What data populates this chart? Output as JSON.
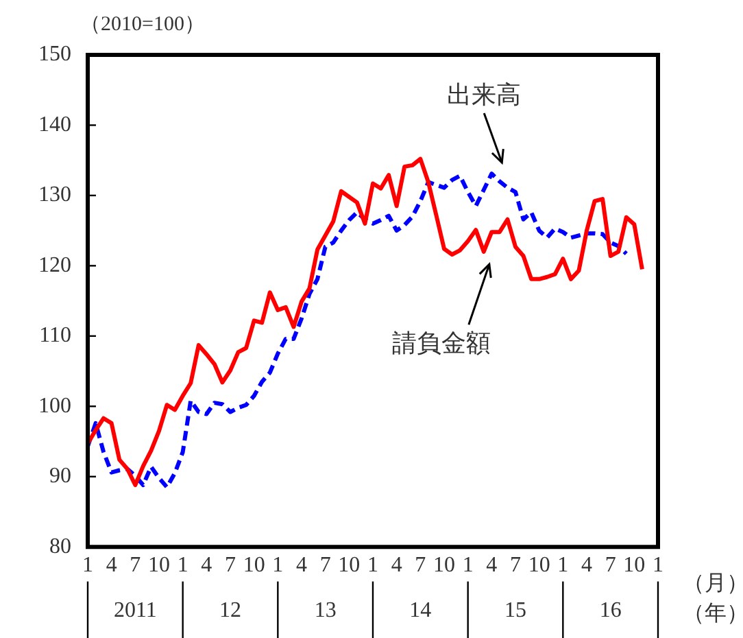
{
  "chart_data": {
    "type": "line",
    "ylabel": "（2010=100）",
    "xlabel": "（月）",
    "x2label": "（年）",
    "x": [
      "2011-01",
      "2011-02",
      "2011-03",
      "2011-04",
      "2011-05",
      "2011-06",
      "2011-07",
      "2011-08",
      "2011-09",
      "2011-10",
      "2011-11",
      "2011-12",
      "2012-01",
      "2012-02",
      "2012-03",
      "2012-04",
      "2012-05",
      "2012-06",
      "2012-07",
      "2012-08",
      "2012-09",
      "2012-10",
      "2012-11",
      "2012-12",
      "2013-01",
      "2013-02",
      "2013-03",
      "2013-04",
      "2013-05",
      "2013-06",
      "2013-07",
      "2013-08",
      "2013-09",
      "2013-10",
      "2013-11",
      "2013-12",
      "2014-01",
      "2014-02",
      "2014-03",
      "2014-04",
      "2014-05",
      "2014-06",
      "2014-07",
      "2014-08",
      "2014-09",
      "2014-10",
      "2014-11",
      "2014-12",
      "2015-01",
      "2015-02",
      "2015-03",
      "2015-04",
      "2015-05",
      "2015-06",
      "2015-07",
      "2015-08",
      "2015-09",
      "2015-10",
      "2015-11",
      "2015-12",
      "2016-01",
      "2016-02",
      "2016-03",
      "2016-04",
      "2016-05",
      "2016-06",
      "2016-07",
      "2016-08",
      "2016-09",
      "2016-10",
      "2016-11"
    ],
    "series": [
      {
        "color": "#ff0000",
        "line_style": "solid",
        "values": [
          94.7,
          96.6,
          98.3,
          97.6,
          92.4,
          91.1,
          88.8,
          91.5,
          93.7,
          96.5,
          100.2,
          99.5,
          101.5,
          103.3,
          108.7,
          107.4,
          106,
          103.4,
          105.1,
          107.7,
          108.3,
          112.2,
          111.9,
          116.2,
          113.7,
          114.1,
          111.3,
          114.9,
          116.8,
          122.3,
          124.3,
          126.3,
          130.6,
          129.8,
          129,
          126,
          131.7,
          131,
          132.9,
          128.5,
          134.1,
          134.3,
          135.2,
          131.9,
          127.2,
          122.4,
          121.6,
          122.2,
          123.5,
          125.1,
          122,
          124.8,
          124.8,
          126.6,
          122.7,
          121.4,
          118.1,
          118.1,
          118.4,
          118.8,
          121,
          118.1,
          119.3,
          125,
          129.2,
          129.5,
          121.4,
          122,
          126.9,
          125.9,
          119.5
        ]
      },
      {
        "color": "#0000ff",
        "line_style": "dashed",
        "values": [
          94.3,
          97.6,
          93.5,
          90.6,
          90.9,
          91.1,
          90.1,
          88.8,
          91.4,
          89.8,
          88.5,
          90.5,
          93.5,
          100.8,
          99.2,
          98.9,
          100.5,
          100.3,
          99.2,
          99.8,
          100.2,
          101.5,
          103.5,
          104.8,
          107.5,
          109.6,
          109.6,
          112.5,
          116,
          118.1,
          122.7,
          123.3,
          125,
          126.5,
          127.6,
          126.6,
          126,
          126.5,
          127.1,
          125,
          125.8,
          127,
          129.2,
          131.9,
          131.5,
          131.1,
          132.2,
          132.8,
          130.5,
          128.5,
          130.8,
          133.1,
          132,
          131.1,
          130.5,
          126.6,
          127.6,
          125,
          124,
          125.3,
          124.8,
          124,
          124.3,
          124.6,
          124.6,
          124.5,
          123.3,
          122.8,
          121.7,
          null,
          null
        ]
      }
    ],
    "xlim": [
      "2011-01",
      "2017-01"
    ],
    "xticks": [
      {
        "value": "2011-01",
        "label": "1"
      },
      {
        "value": "2011-04",
        "label": "4"
      },
      {
        "value": "2011-07",
        "label": "7"
      },
      {
        "value": "2011-10",
        "label": "10"
      },
      {
        "value": "2012-01",
        "label": "1"
      },
      {
        "value": "2012-04",
        "label": "4"
      },
      {
        "value": "2012-07",
        "label": "7"
      },
      {
        "value": "2012-10",
        "label": "10"
      },
      {
        "value": "2013-01",
        "label": "1"
      },
      {
        "value": "2013-04",
        "label": "4"
      },
      {
        "value": "2013-07",
        "label": "7"
      },
      {
        "value": "2013-10",
        "label": "10"
      },
      {
        "value": "2014-01",
        "label": "1"
      },
      {
        "value": "2014-04",
        "label": "4"
      },
      {
        "value": "2014-07",
        "label": "7"
      },
      {
        "value": "2014-10",
        "label": "10"
      },
      {
        "value": "2015-01",
        "label": "1"
      },
      {
        "value": "2015-04",
        "label": "4"
      },
      {
        "value": "2015-07",
        "label": "7"
      },
      {
        "value": "2015-10",
        "label": "10"
      },
      {
        "value": "2016-01",
        "label": "1"
      },
      {
        "value": "2016-04",
        "label": "4"
      },
      {
        "value": "2016-07",
        "label": "7"
      },
      {
        "value": "2016-10",
        "label": "10"
      },
      {
        "value": "2017-01",
        "label": "1"
      }
    ],
    "x2lim": [
      "2011-01",
      "2017-01"
    ],
    "x2ticks": [
      {
        "value": "2011-07",
        "label": "2011"
      },
      {
        "value": "2012-07",
        "label": "12"
      },
      {
        "value": "2013-07",
        "label": "13"
      },
      {
        "value": "2014-07",
        "label": "14"
      },
      {
        "value": "2015-07",
        "label": "15"
      },
      {
        "value": "2016-07",
        "label": "16"
      }
    ],
    "ylim": [
      80,
      150
    ],
    "yticks": [
      80,
      90,
      100,
      110,
      120,
      130,
      140,
      150
    ],
    "annotations": [
      "出来高",
      "請負金額"
    ],
    "grid": false,
    "legend": false,
    "marker": "none"
  }
}
